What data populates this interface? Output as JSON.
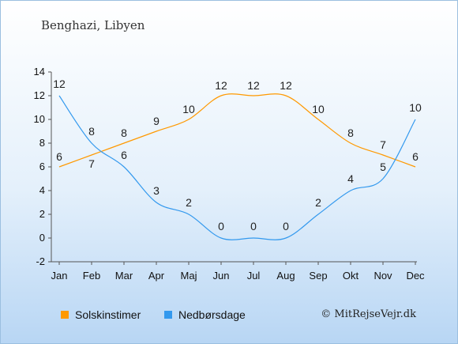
{
  "header": {
    "location": "Benghazi, Libyen"
  },
  "legend": {
    "sun_label": "Solskinstimer",
    "rain_label": "Nedbørsdage"
  },
  "footer": {
    "copyright": "© MitRejseVejr.dk"
  },
  "colors": {
    "sun": "#ff9900",
    "rain": "#3399ee",
    "axis": "#555555"
  },
  "chart_data": {
    "type": "line",
    "categories": [
      "Jan",
      "Feb",
      "Mar",
      "Apr",
      "Maj",
      "Jun",
      "Jul",
      "Aug",
      "Sep",
      "Okt",
      "Nov",
      "Dec"
    ],
    "ylim": [
      -2,
      14
    ],
    "yticks": [
      -2,
      0,
      2,
      4,
      6,
      8,
      10,
      12,
      14
    ],
    "grid": false,
    "legend_position": "bottom",
    "series": [
      {
        "name": "Solskinstimer",
        "values": [
          6,
          7,
          8,
          9,
          10,
          12,
          12,
          12,
          10,
          8,
          7,
          6
        ]
      },
      {
        "name": "Nedbørsdage",
        "values": [
          12,
          8,
          6,
          3,
          2,
          0,
          0,
          0,
          2,
          4,
          5,
          10
        ]
      }
    ]
  }
}
